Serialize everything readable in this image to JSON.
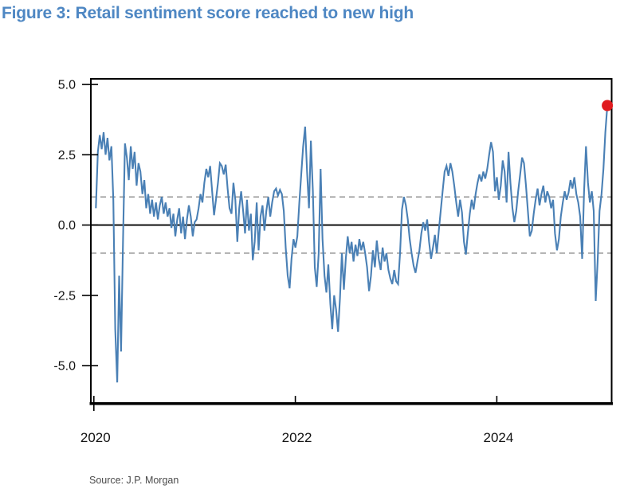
{
  "header": {
    "title": "Figure 3: Retail sentiment score reached to new high"
  },
  "footer": {
    "source": "Source: J.P. Morgan"
  },
  "chart_data": {
    "type": "line",
    "title": "Figure 3: Retail sentiment score reached to new high",
    "xlabel": "",
    "ylabel": "",
    "grid": "off",
    "legend": "none",
    "ylim": [
      -6.33,
      5.2
    ],
    "xlim": [
      2019.97,
      2025.14
    ],
    "y_ticks": [
      5.0,
      2.5,
      0.0,
      -2.5,
      -5.0
    ],
    "y_tick_labels": [
      "5.0",
      "2.5",
      "0.0",
      "-2.5",
      "-5.0"
    ],
    "x_tick_years": [
      2020,
      2022,
      2024
    ],
    "x_tick_labels": [
      "2020",
      "2022",
      "2024"
    ],
    "reference_lines": {
      "solid_zero": 0,
      "dashed": [
        1.0,
        -1.0
      ]
    },
    "series": [
      {
        "name": "Retail sentiment score",
        "frequency": "weekly",
        "start_year": 2020.02,
        "step_years": 0.019231,
        "values": [
          0.6,
          2.6,
          3.2,
          2.7,
          3.3,
          2.5,
          3.1,
          2.3,
          2.8,
          0.9,
          -3.7,
          -5.6,
          -1.8,
          -4.5,
          -0.5,
          2.9,
          2.4,
          1.6,
          2.8,
          2.0,
          2.6,
          1.4,
          2.2,
          1.9,
          1.1,
          1.6,
          0.6,
          1.1,
          0.4,
          0.9,
          0.3,
          0.8,
          0.2,
          0.7,
          1.0,
          0.4,
          0.8,
          0.3,
          0.6,
          -0.1,
          0.4,
          -0.4,
          0.2,
          0.6,
          -0.3,
          0.3,
          -0.5,
          0.2,
          0.7,
          0.3,
          -0.4,
          0.1,
          0.2,
          0.6,
          1.1,
          0.8,
          1.5,
          2.0,
          1.7,
          2.1,
          1.2,
          0.35,
          0.9,
          1.5,
          2.2,
          2.1,
          1.8,
          2.15,
          1.3,
          0.6,
          0.4,
          1.5,
          0.9,
          -0.6,
          0.6,
          1.2,
          0.5,
          -0.3,
          0.9,
          -0.2,
          0.4,
          -1.25,
          -0.6,
          0.8,
          -0.9,
          0.3,
          0.7,
          -0.2,
          0.5,
          1.0,
          0.3,
          0.8,
          1.2,
          1.3,
          1.05,
          1.25,
          1.1,
          0.5,
          -0.8,
          -1.8,
          -2.25,
          -1.2,
          -0.5,
          -0.8,
          -0.4,
          0.8,
          1.8,
          2.8,
          3.5,
          1.9,
          0.6,
          3.0,
          1.2,
          -1.5,
          -2.2,
          -1.0,
          2.0,
          -0.5,
          -1.8,
          -2.4,
          -1.4,
          -2.8,
          -3.7,
          -2.5,
          -3.0,
          -3.8,
          -2.6,
          -1.0,
          -2.3,
          -1.2,
          -0.4,
          -1.0,
          -0.6,
          -1.3,
          -0.7,
          -1.1,
          -0.5,
          -0.9,
          -0.6,
          -1.0,
          -1.5,
          -2.35,
          -1.8,
          -0.9,
          -1.5,
          -0.55,
          -1.2,
          -1.6,
          -0.8,
          -1.3,
          -1.0,
          -1.6,
          -1.9,
          -2.1,
          -1.6,
          -2.0,
          -2.1,
          -1.0,
          0.55,
          1.0,
          0.7,
          0.2,
          -0.5,
          -1.0,
          -1.45,
          -1.7,
          -1.3,
          -0.9,
          -0.3,
          0.1,
          -0.2,
          0.2,
          -0.6,
          -1.2,
          -0.8,
          -0.35,
          -1.0,
          -0.2,
          0.5,
          1.2,
          1.9,
          2.1,
          1.75,
          2.2,
          1.9,
          1.4,
          0.8,
          0.3,
          0.9,
          0.45,
          -0.6,
          -1.05,
          -0.3,
          0.4,
          0.9,
          0.55,
          1.1,
          1.5,
          1.8,
          1.55,
          1.9,
          1.65,
          2.0,
          2.5,
          2.95,
          2.6,
          1.2,
          1.7,
          0.9,
          1.4,
          2.3,
          1.9,
          0.8,
          2.6,
          1.5,
          0.6,
          0.1,
          0.5,
          1.2,
          1.8,
          2.4,
          2.2,
          1.4,
          0.5,
          -0.4,
          -0.2,
          0.4,
          0.9,
          1.3,
          0.7,
          1.1,
          1.4,
          0.8,
          1.2,
          1.0,
          0.6,
          0.9,
          -0.3,
          -0.9,
          -0.5,
          0.3,
          0.8,
          1.2,
          0.9,
          1.15,
          1.6,
          1.3,
          1.7,
          1.1,
          0.8,
          0.3,
          -1.2,
          1.2,
          2.8,
          1.5,
          0.8,
          1.2,
          0.5,
          -2.7,
          -1.3,
          0.5,
          1.1,
          2.0,
          3.3,
          4.25
        ]
      }
    ],
    "latest_point": {
      "value": 4.25,
      "marker": "red-dot"
    },
    "colors": {
      "line": "#4a80b5",
      "latest_dot": "#e01b1f",
      "dashed_reference": "#7d7d7d",
      "axis": "#000000",
      "title": "#4e87c3"
    }
  }
}
